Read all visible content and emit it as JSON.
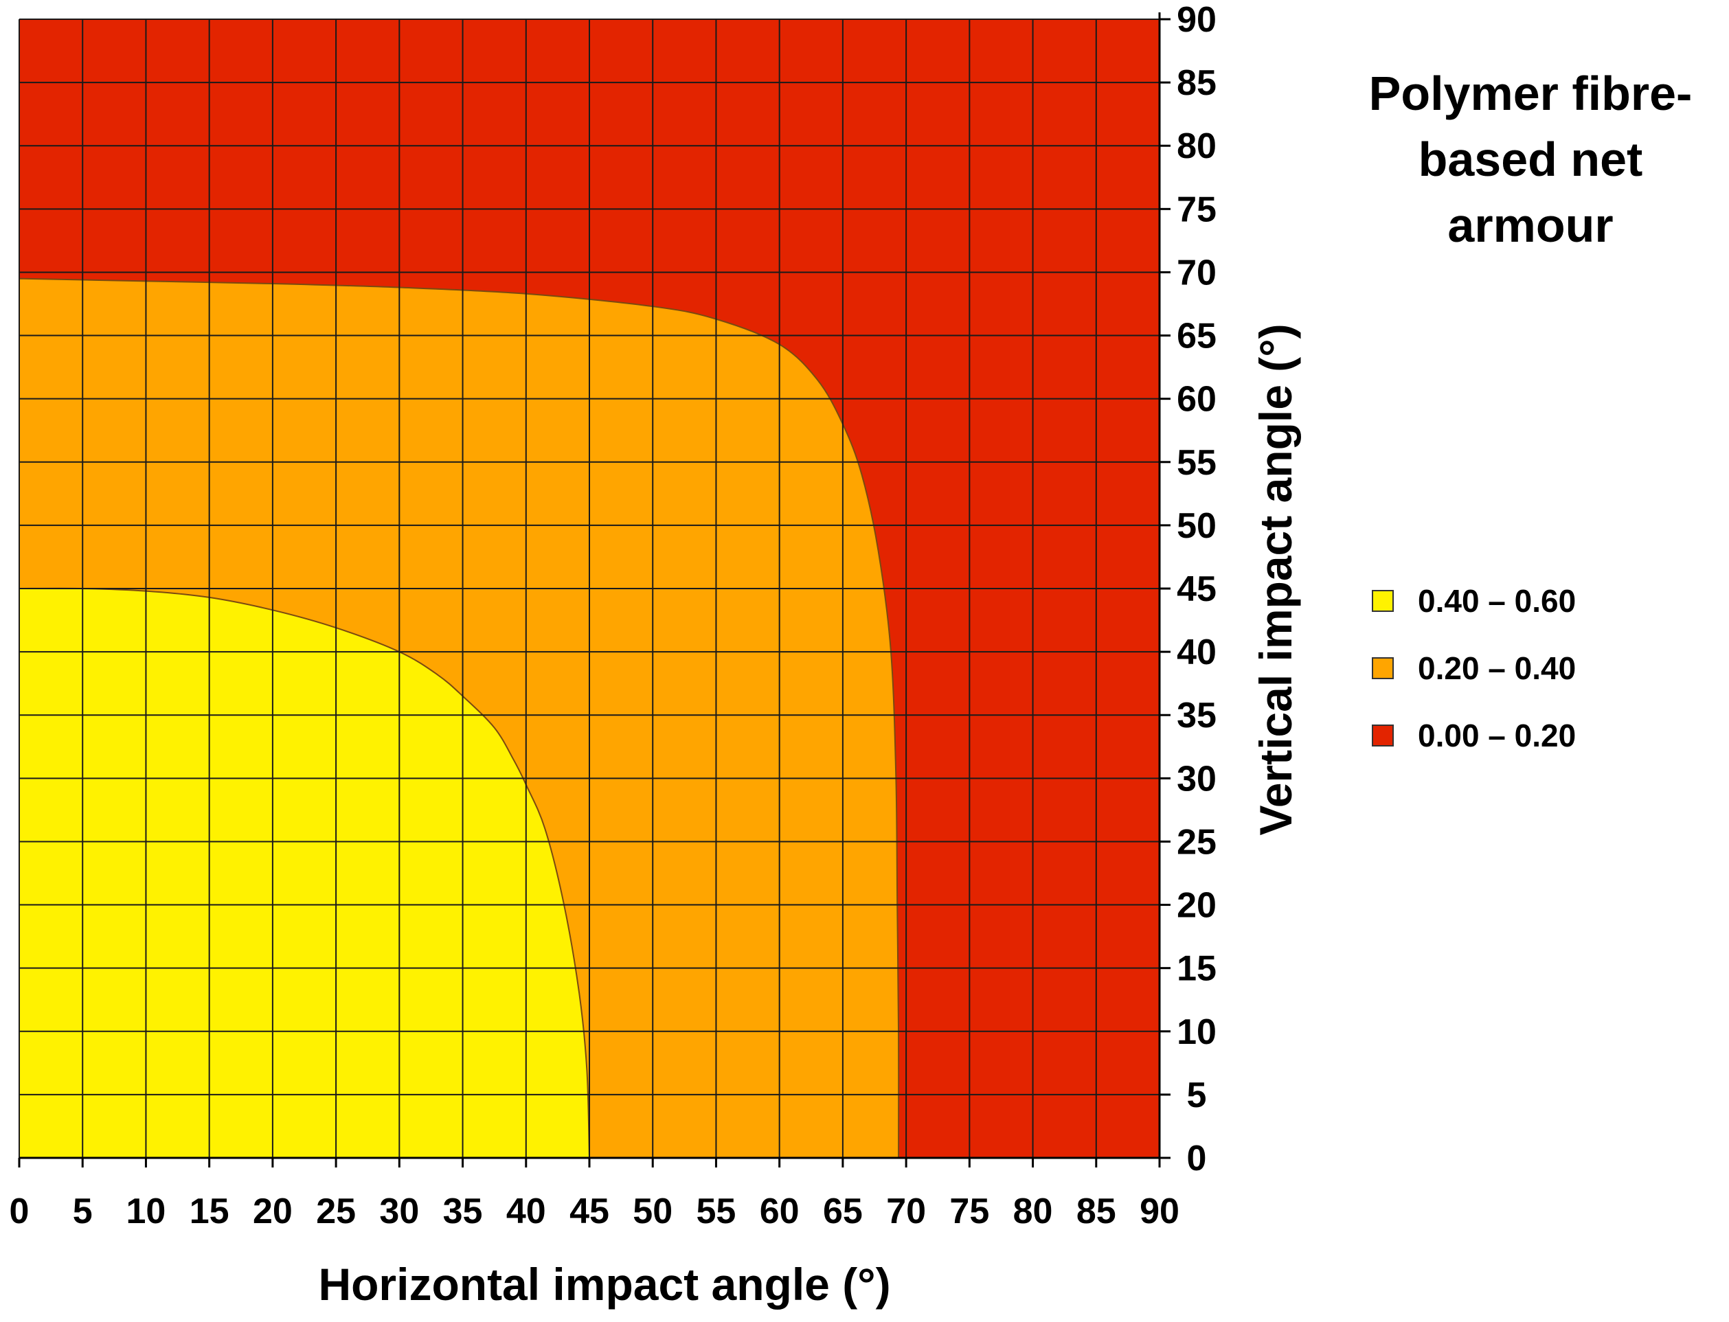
{
  "chart_data": {
    "type": "contour",
    "title_lines": [
      "Polymer fibre-",
      "based net",
      "armour"
    ],
    "xlabel": "Horizontal impact angle (°)",
    "ylabel": "Vertical impact angle (°)",
    "xlim": [
      0,
      90
    ],
    "ylim": [
      0,
      90
    ],
    "x_ticks": [
      "0",
      "5",
      "10",
      "15",
      "20",
      "25",
      "30",
      "35",
      "40",
      "45",
      "50",
      "55",
      "60",
      "65",
      "70",
      "75",
      "80",
      "85",
      "90"
    ],
    "y_ticks": [
      "0",
      "5",
      "10",
      "15",
      "20",
      "25",
      "30",
      "35",
      "40",
      "45",
      "50",
      "55",
      "60",
      "65",
      "70",
      "75",
      "80",
      "85",
      "90"
    ],
    "grid": true,
    "y_axis_position": "right",
    "legend_position": "right",
    "regions": [
      {
        "name": "0.00 – 0.20",
        "color": "#E32400",
        "boundary": "full domain"
      },
      {
        "name": "0.20 – 0.40",
        "color": "#FFA500",
        "boundary": [
          [
            0,
            69.5
          ],
          [
            10,
            69.3
          ],
          [
            20,
            69.1
          ],
          [
            30,
            68.8
          ],
          [
            40,
            68.3
          ],
          [
            50,
            67.3
          ],
          [
            55,
            66.3
          ],
          [
            60,
            64.3
          ],
          [
            63,
            61.5
          ],
          [
            65,
            58
          ],
          [
            66.5,
            54
          ],
          [
            67.8,
            48
          ],
          [
            68.8,
            40
          ],
          [
            69.2,
            30
          ],
          [
            69.3,
            20
          ],
          [
            69.4,
            10
          ],
          [
            69.4,
            0
          ]
        ]
      },
      {
        "name": "0.40 – 0.60",
        "color": "#FFF200",
        "boundary": [
          [
            0,
            45
          ],
          [
            5,
            45
          ],
          [
            10,
            44.8
          ],
          [
            15,
            44.3
          ],
          [
            20,
            43.3
          ],
          [
            25,
            41.9
          ],
          [
            30,
            40
          ],
          [
            33,
            38.2
          ],
          [
            35,
            36.5
          ],
          [
            37.5,
            34
          ],
          [
            39,
            31.5
          ],
          [
            40,
            29.5
          ],
          [
            41.5,
            26
          ],
          [
            43,
            20
          ],
          [
            44.2,
            13
          ],
          [
            44.8,
            7
          ],
          [
            45,
            0
          ]
        ]
      }
    ],
    "legend": [
      {
        "label": "0.40 – 0.60",
        "color": "#FFF200"
      },
      {
        "label": "0.20 – 0.40",
        "color": "#FFA500"
      },
      {
        "label": "0.00 – 0.20",
        "color": "#E32400"
      }
    ]
  }
}
